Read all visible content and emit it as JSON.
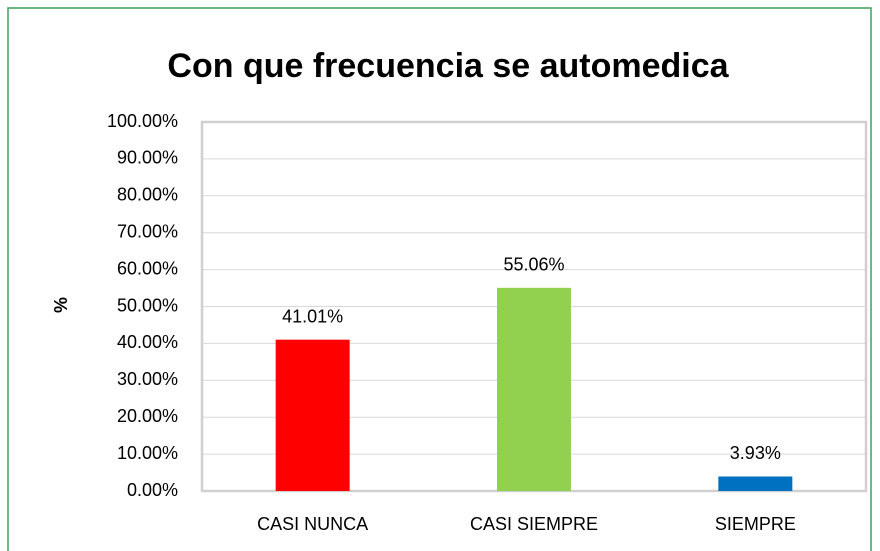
{
  "chart_data": {
    "type": "bar",
    "title": "Con que frecuencia se automedica",
    "y_label": "%",
    "categories": [
      "CASI NUNCA",
      "CASI SIEMPRE",
      "SIEMPRE"
    ],
    "values": [
      41.01,
      55.06,
      3.93
    ],
    "value_labels": [
      "41.01%",
      "55.06%",
      "3.93%"
    ],
    "colors": [
      "#ff0000",
      "#92d050",
      "#0070c0"
    ],
    "ylim": [
      0,
      100
    ],
    "yticks": [
      {
        "value": 0,
        "label": "0.00%"
      },
      {
        "value": 10,
        "label": "10.00%"
      },
      {
        "value": 20,
        "label": "20.00%"
      },
      {
        "value": 30,
        "label": "30.00%"
      },
      {
        "value": 40,
        "label": "40.00%"
      },
      {
        "value": 50,
        "label": "50.00%"
      },
      {
        "value": 60,
        "label": "60.00%"
      },
      {
        "value": 70,
        "label": "70.00%"
      },
      {
        "value": 80,
        "label": "80.00%"
      },
      {
        "value": 90,
        "label": "90.00%"
      },
      {
        "value": 100,
        "label": "100.00%"
      }
    ],
    "grid": true
  }
}
